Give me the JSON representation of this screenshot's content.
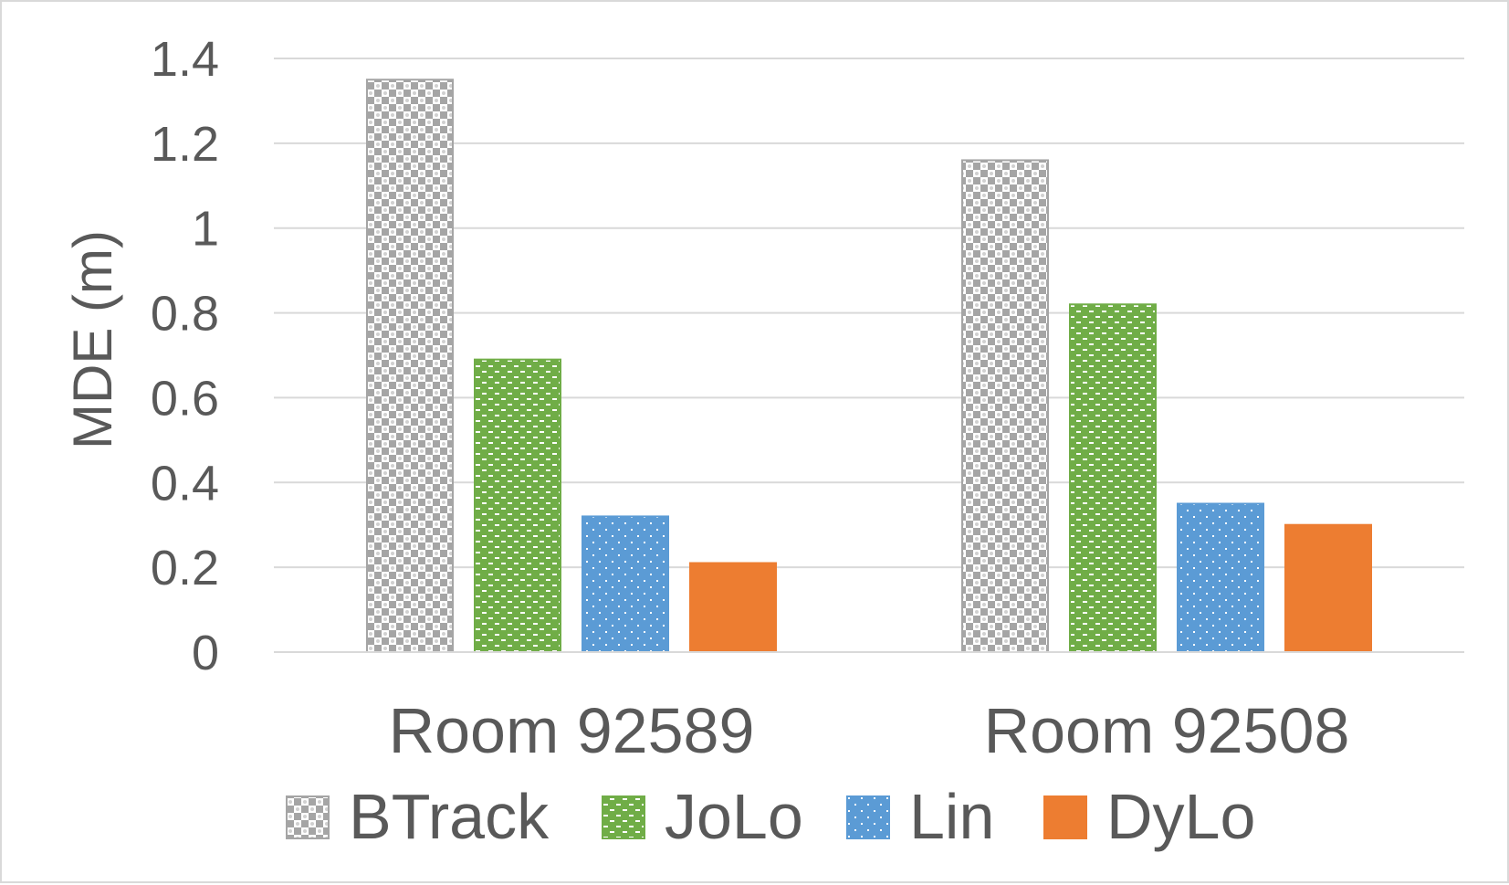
{
  "chart_data": {
    "type": "bar",
    "title": "",
    "xlabel": "",
    "ylabel": "MDE (m)",
    "ylim": [
      0,
      1.4
    ],
    "yticks": [
      "0",
      "0.2",
      "0.4",
      "0.6",
      "0.8",
      "1",
      "1.2",
      "1.4"
    ],
    "grid": true,
    "legend_position": "bottom",
    "categories": [
      "Room 92589",
      "Room 92508"
    ],
    "series": [
      {
        "name": "BTrack",
        "values": [
          1.35,
          1.16
        ],
        "color": "#a5a5a5",
        "pattern": "checker"
      },
      {
        "name": "JoLo",
        "values": [
          0.69,
          0.82
        ],
        "color": "#70ad47",
        "pattern": "brick"
      },
      {
        "name": "Lin",
        "values": [
          0.32,
          0.35
        ],
        "color": "#5b9bd5",
        "pattern": "dots"
      },
      {
        "name": "DyLo",
        "values": [
          0.21,
          0.3
        ],
        "color": "#ed7d31",
        "pattern": "solid"
      }
    ]
  }
}
